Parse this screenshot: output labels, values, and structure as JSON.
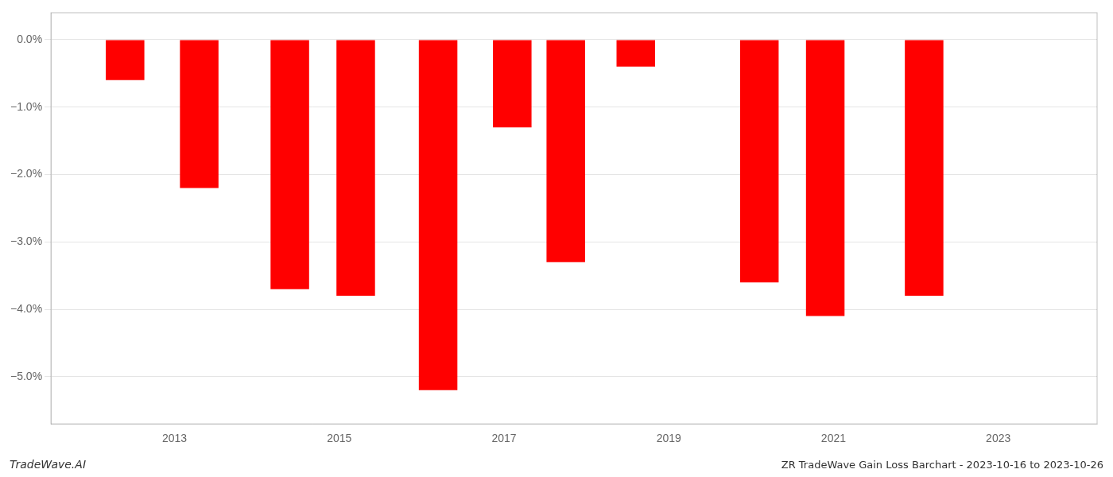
{
  "chart_data": {
    "type": "bar",
    "x": [
      2012.4,
      2013.3,
      2014.4,
      2015.2,
      2016.2,
      2017.1,
      2017.75,
      2018.6,
      2020.1,
      2020.9,
      2022.1
    ],
    "values": [
      -0.006,
      -0.022,
      -0.037,
      -0.038,
      -0.052,
      -0.013,
      -0.033,
      -0.004,
      -0.036,
      -0.041,
      -0.038
    ],
    "color": "#ff0000",
    "xlim": [
      2011.5,
      2024.2
    ],
    "xticks": [
      2013,
      2015,
      2017,
      2019,
      2021,
      2023
    ],
    "ylim": [
      -0.057,
      0.004
    ],
    "yticks": [
      {
        "value": 0.0,
        "label": "0.0%"
      },
      {
        "value": -0.01,
        "label": "−1.0%"
      },
      {
        "value": -0.02,
        "label": "−2.0%"
      },
      {
        "value": -0.03,
        "label": "−3.0%"
      },
      {
        "value": -0.04,
        "label": "−4.0%"
      },
      {
        "value": -0.05,
        "label": "−5.0%"
      }
    ],
    "grid": "y",
    "annotations": [
      "TradeWave.AI",
      "ZR TradeWave Gain Loss Barchart - 2023-10-16 to 2023-10-26"
    ]
  }
}
